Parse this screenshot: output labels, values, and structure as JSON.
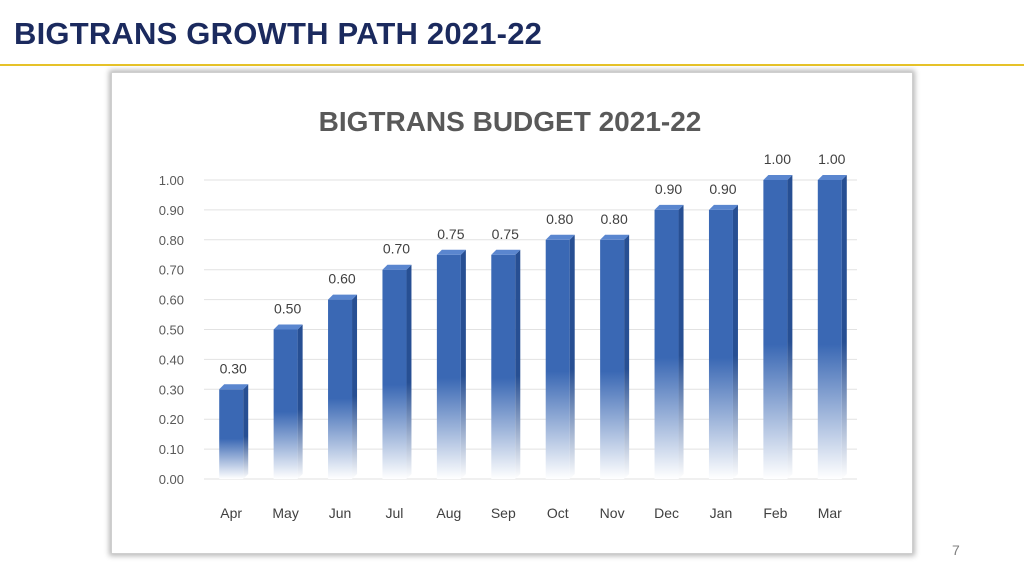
{
  "slide": {
    "title": "BIGTRANS GROWTH PATH 2021-22",
    "page_number": "7"
  },
  "colors": {
    "title": "#1b2a5e",
    "rule": "#e6c229",
    "bar": "#3a68b4",
    "bar_dark": "#274f93",
    "bar_fade": "#ffffff"
  },
  "chart_data": {
    "type": "bar",
    "title": "BIGTRANS BUDGET 2021-22",
    "xlabel": "",
    "ylabel": "",
    "categories": [
      "Apr",
      "May",
      "Jun",
      "Jul",
      "Aug",
      "Sep",
      "Oct",
      "Nov",
      "Dec",
      "Jan",
      "Feb",
      "Mar"
    ],
    "values": [
      0.3,
      0.5,
      0.6,
      0.7,
      0.75,
      0.75,
      0.8,
      0.8,
      0.9,
      0.9,
      1.0,
      1.0
    ],
    "value_labels": [
      "0.30",
      "0.50",
      "0.60",
      "0.70",
      "0.75",
      "0.75",
      "0.80",
      "0.80",
      "0.90",
      "0.90",
      "1.00",
      "1.00"
    ],
    "ylim": [
      0,
      1.0
    ],
    "yticks": [
      "0.00",
      "0.10",
      "0.20",
      "0.30",
      "0.40",
      "0.50",
      "0.60",
      "0.70",
      "0.80",
      "0.90",
      "1.00"
    ],
    "grid": true,
    "legend": "none",
    "style": "3d-gradient-bars"
  }
}
